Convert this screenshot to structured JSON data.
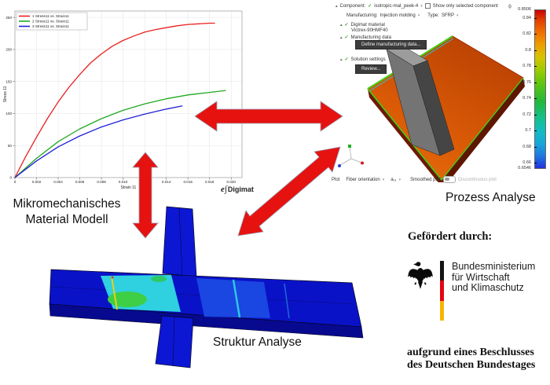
{
  "colors": {
    "arrow_red": "#e61210",
    "structure_blue": "#0a12c8",
    "structure_cyan": "#2fd0e0",
    "plate_orange": "#d85708",
    "flag_black": "#141414",
    "flag_red": "#e30613",
    "flag_gold": "#f7b500",
    "check_green": "#2f9e1f",
    "button_dark": "#3c3c3c"
  },
  "labels": {
    "micro_line1": "Mikromechanisches",
    "micro_line2": "Material Modell",
    "process": "Prozess Analyse",
    "structure": "Struktur Analyse"
  },
  "digimat": {
    "prefix": "e∫",
    "name": "Digimat"
  },
  "chart_data": {
    "type": "line",
    "title": "",
    "xlabel": "Strain 11",
    "ylabel": "Stress 11",
    "xlim": [
      0,
      0.021
    ],
    "ylim": [
      0,
      260
    ],
    "grid": true,
    "legend_position": "top-left",
    "x_ticks": [
      "0",
      "0.002",
      "0.004",
      "0.006",
      "0.008",
      "0.010",
      "0.012",
      "0.014",
      "0.016",
      "0.018",
      "0.020"
    ],
    "x_tick_values": [
      0,
      0.002,
      0.004,
      0.006,
      0.008,
      0.01,
      0.012,
      0.014,
      0.016,
      0.018,
      0.02
    ],
    "y_ticks": [
      "0",
      "50",
      "100",
      "150",
      "200",
      "250"
    ],
    "y_tick_values": [
      0,
      50,
      100,
      150,
      200,
      250
    ],
    "series": [
      {
        "name": "1 Stress11 vs. Strain11",
        "color": "#e82020",
        "points": [
          [
            0,
            0
          ],
          [
            0.001,
            33
          ],
          [
            0.002,
            63
          ],
          [
            0.003,
            92
          ],
          [
            0.004,
            118
          ],
          [
            0.005,
            141
          ],
          [
            0.006,
            161
          ],
          [
            0.007,
            179
          ],
          [
            0.008,
            193
          ],
          [
            0.009,
            205
          ],
          [
            0.01,
            214
          ],
          [
            0.011,
            221
          ],
          [
            0.012,
            227
          ],
          [
            0.013,
            231
          ],
          [
            0.014,
            234
          ],
          [
            0.015,
            237
          ],
          [
            0.016,
            239
          ],
          [
            0.017,
            240
          ],
          [
            0.018,
            241
          ],
          [
            0.0185,
            241
          ]
        ]
      },
      {
        "name": "2 Stress11 vs. Strain11",
        "color": "#20a820",
        "points": [
          [
            0,
            0
          ],
          [
            0.002,
            30
          ],
          [
            0.004,
            56
          ],
          [
            0.006,
            76
          ],
          [
            0.008,
            92
          ],
          [
            0.01,
            105
          ],
          [
            0.012,
            115
          ],
          [
            0.014,
            123
          ],
          [
            0.016,
            129
          ],
          [
            0.018,
            133
          ],
          [
            0.0195,
            136
          ]
        ]
      },
      {
        "name": "3 Stress11 vs. Strain11",
        "color": "#2020d8",
        "points": [
          [
            0,
            0
          ],
          [
            0.002,
            26
          ],
          [
            0.004,
            48
          ],
          [
            0.006,
            65
          ],
          [
            0.008,
            79
          ],
          [
            0.01,
            90
          ],
          [
            0.012,
            99
          ],
          [
            0.014,
            107
          ],
          [
            0.0155,
            112
          ]
        ]
      }
    ]
  },
  "process_panel": {
    "rows": {
      "component_label": "Component:",
      "component_value": "isotropic-mat_peek-4",
      "show_only": "Show only selected component",
      "manufacturing_label": "Manufacturing:",
      "manufacturing_value": "Injection molding",
      "type_label": "Type:",
      "type_value": "SFRP",
      "digimat_material": "Digimat material",
      "material_name": "Victrex-90HMF40",
      "manufacturing_data": "Manufacturing data",
      "solution_settings": "Solution settings"
    },
    "buttons": {
      "define": "Define manufacturing data...",
      "review": "Review..."
    },
    "plot_bar": {
      "plot": "Plot",
      "type": "Fiber orientation",
      "component": "a₁₁",
      "smoothed": "Smoothed plot",
      "discontinuous": "Discontinuous plot"
    },
    "colorbar": {
      "symbol": "ϕ",
      "max": "0.8506",
      "min": "0.6546",
      "ticks": [
        "0.84",
        "0.82",
        "0.8",
        "0.78",
        "0.76",
        "0.74",
        "0.72",
        "0.7",
        "0.68",
        "0.66"
      ],
      "tick_values": [
        0.84,
        0.82,
        0.8,
        0.78,
        0.76,
        0.74,
        0.72,
        0.7,
        0.68,
        0.66
      ]
    }
  },
  "funding": {
    "heading": "Gefördert durch:",
    "ministry_lines": [
      "Bundesministerium",
      "für Wirtschaft",
      "und Klimaschutz"
    ],
    "footnote_lines": [
      "aufgrund eines Beschlusses",
      "des Deutschen Bundestages"
    ]
  }
}
